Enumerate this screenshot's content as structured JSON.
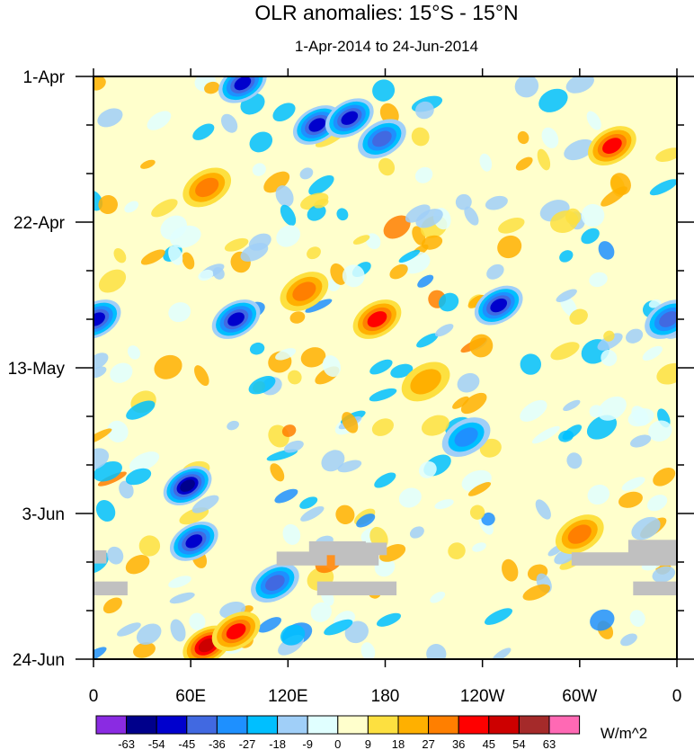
{
  "chart_data": {
    "type": "heatmap",
    "title": "OLR anomalies: 15°S - 15°N",
    "subtitle": "1-Apr-2014 to 24-Jun-2014",
    "xlabel": "",
    "ylabel": "",
    "x_ticks": [
      "0",
      "60E",
      "120E",
      "180",
      "120W",
      "60W",
      "0"
    ],
    "x_tick_degrees": [
      0,
      60,
      120,
      180,
      240,
      300,
      360
    ],
    "xlim": [
      0,
      360
    ],
    "y_ticks": [
      "1-Apr",
      "22-Apr",
      "13-May",
      "3-Jun",
      "24-Jun"
    ],
    "y_tick_days": [
      0,
      21,
      42,
      63,
      84
    ],
    "ylim_days": [
      0,
      84
    ],
    "colorbar": {
      "units": "W/m^2",
      "levels": [
        "-63",
        "-54",
        "-45",
        "-36",
        "-27",
        "-18",
        "-9",
        "0",
        "9",
        "18",
        "27",
        "36",
        "45",
        "54",
        "63"
      ],
      "colors": [
        "#8a2be2",
        "#00008b",
        "#0000cd",
        "#4169e1",
        "#1e90ff",
        "#00bfff",
        "#a0cff8",
        "#e0ffff",
        "#ffffcc",
        "#fde040",
        "#ffb000",
        "#ff7f00",
        "#ff0000",
        "#cd0000",
        "#a52a2a",
        "#ff69b4"
      ]
    },
    "missing_color": "#c0c0c0",
    "features": [
      {
        "name": "negative anomaly center",
        "lon": 92,
        "day": 1,
        "value": -50
      },
      {
        "name": "negative anomaly center",
        "lon": 138,
        "day": 7,
        "value": -45
      },
      {
        "name": "negative anomaly center",
        "lon": 158,
        "day": 6,
        "value": -50
      },
      {
        "name": "negative anomaly center",
        "lon": 178,
        "day": 9,
        "value": -36
      },
      {
        "name": "positive anomaly center",
        "lon": 70,
        "day": 16,
        "value": 27
      },
      {
        "name": "positive anomaly center",
        "lon": 320,
        "day": 10,
        "value": 36
      },
      {
        "name": "negative anomaly center",
        "lon": 2,
        "day": 35,
        "value": -45
      },
      {
        "name": "negative anomaly center",
        "lon": 88,
        "day": 35,
        "value": -45
      },
      {
        "name": "positive anomaly center",
        "lon": 130,
        "day": 31,
        "value": 27
      },
      {
        "name": "positive anomaly center",
        "lon": 175,
        "day": 35,
        "value": 36
      },
      {
        "name": "negative anomaly center",
        "lon": 250,
        "day": 33,
        "value": -45
      },
      {
        "name": "negative anomaly center",
        "lon": 355,
        "day": 35,
        "value": -36
      },
      {
        "name": "negative anomaly center",
        "lon": 58,
        "day": 59,
        "value": -54
      },
      {
        "name": "negative anomaly center",
        "lon": 62,
        "day": 67,
        "value": -45
      },
      {
        "name": "negative anomaly center",
        "lon": 112,
        "day": 73,
        "value": -36
      },
      {
        "name": "positive anomaly center",
        "lon": 70,
        "day": 82,
        "value": 45
      },
      {
        "name": "positive anomaly center",
        "lon": 88,
        "day": 80,
        "value": 36
      },
      {
        "name": "positive anomaly center",
        "lon": 300,
        "day": 66,
        "value": 27
      },
      {
        "name": "positive anomaly center",
        "lon": 205,
        "day": 44,
        "value": 18
      },
      {
        "name": "negative anomaly center",
        "lon": 230,
        "day": 52,
        "value": -27
      }
    ],
    "missing_blocks": [
      {
        "lon0": 0,
        "lon1": 8,
        "day0": 68.3,
        "day1": 70.2
      },
      {
        "lon0": 0,
        "lon1": 21,
        "day0": 72.8,
        "day1": 74.8
      },
      {
        "lon0": 113,
        "lon1": 144,
        "day0": 68.5,
        "day1": 70.5
      },
      {
        "lon0": 133,
        "lon1": 168,
        "day0": 67.0,
        "day1": 69.0
      },
      {
        "lon0": 149,
        "lon1": 181,
        "day0": 67.2,
        "day1": 69.0
      },
      {
        "lon0": 149,
        "lon1": 176,
        "day0": 68.8,
        "day1": 70.5
      },
      {
        "lon0": 138,
        "lon1": 187,
        "day0": 72.8,
        "day1": 74.8
      },
      {
        "lon0": 295,
        "lon1": 360,
        "day0": 68.6,
        "day1": 70.5
      },
      {
        "lon0": 330,
        "lon1": 360,
        "day0": 66.8,
        "day1": 69.0
      },
      {
        "lon0": 333,
        "lon1": 360,
        "day0": 72.8,
        "day1": 74.8
      }
    ]
  }
}
